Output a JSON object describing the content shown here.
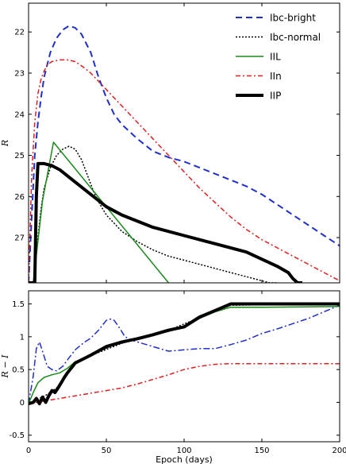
{
  "chart_data": [
    {
      "type": "line",
      "xlabel": "",
      "ylabel": "R",
      "xlim": [
        0,
        200
      ],
      "ylim": [
        28.1,
        21.3
      ],
      "y_inverted": true,
      "x_ticks": [
        0,
        50,
        100,
        150,
        200
      ],
      "y_ticks": [
        22,
        23,
        24,
        25,
        26,
        27
      ],
      "legend": "top-right",
      "series": [
        {
          "name": "Ibc-bright",
          "color": "#1f2fc8",
          "dash": "8,5",
          "width": 2,
          "x": [
            0,
            2,
            4,
            6,
            8,
            10,
            14,
            18,
            22,
            26,
            30,
            34,
            40,
            45,
            50,
            55,
            60,
            70,
            80,
            90,
            100,
            110,
            120,
            130,
            140,
            150,
            160,
            170,
            180,
            190,
            200
          ],
          "y": [
            28.1,
            26.5,
            25.0,
            24.2,
            23.6,
            23.1,
            22.5,
            22.15,
            21.95,
            21.85,
            21.9,
            22.05,
            22.5,
            23.1,
            23.6,
            24.0,
            24.25,
            24.6,
            24.9,
            25.05,
            25.15,
            25.3,
            25.45,
            25.6,
            25.75,
            25.95,
            26.2,
            26.45,
            26.7,
            26.95,
            27.2
          ]
        },
        {
          "name": "Ibc-normal",
          "color": "#000000",
          "dash": "2,2",
          "width": 1.5,
          "x": [
            0,
            3,
            6,
            8,
            10,
            14,
            18,
            22,
            26,
            30,
            34,
            38,
            42,
            46,
            50,
            55,
            60,
            70,
            80,
            90,
            100,
            110,
            120,
            130,
            140,
            150,
            155,
            160
          ],
          "y": [
            28.1,
            28.1,
            27.0,
            26.3,
            25.8,
            25.3,
            25.0,
            24.85,
            24.78,
            24.85,
            25.1,
            25.5,
            25.9,
            26.2,
            26.45,
            26.65,
            26.85,
            27.1,
            27.3,
            27.45,
            27.55,
            27.65,
            27.75,
            27.85,
            27.95,
            28.05,
            28.1,
            28.1
          ]
        },
        {
          "name": "IIL",
          "color": "#1a8a1a",
          "dash": "",
          "width": 1.5,
          "x": [
            0,
            3,
            9,
            16,
            90
          ],
          "y": [
            28.1,
            28.1,
            26.1,
            24.68,
            28.1
          ]
        },
        {
          "name": "IIn",
          "color": "#e02020",
          "dash": "6,3,2,3",
          "width": 1.5,
          "x": [
            0,
            2,
            4,
            6,
            8,
            10,
            12,
            15,
            20,
            25,
            30,
            35,
            40,
            45,
            50,
            55,
            60,
            70,
            80,
            90,
            100,
            110,
            120,
            130,
            140,
            150,
            160,
            170,
            180,
            190,
            200
          ],
          "y": [
            28.1,
            25.5,
            24.2,
            23.5,
            23.15,
            22.95,
            22.8,
            22.72,
            22.68,
            22.68,
            22.72,
            22.85,
            23.0,
            23.2,
            23.4,
            23.6,
            23.8,
            24.2,
            24.6,
            25.0,
            25.4,
            25.8,
            26.15,
            26.5,
            26.8,
            27.05,
            27.25,
            27.45,
            27.65,
            27.85,
            28.05
          ]
        },
        {
          "name": "IIP",
          "color": "#000000",
          "dash": "",
          "width": 4,
          "x": [
            0,
            4,
            5,
            6,
            10,
            15,
            20,
            30,
            40,
            50,
            60,
            80,
            100,
            120,
            140,
            160,
            167,
            170,
            173,
            176
          ],
          "y": [
            28.1,
            28.1,
            26.0,
            25.2,
            25.2,
            25.25,
            25.35,
            25.65,
            25.95,
            26.25,
            26.45,
            26.75,
            26.95,
            27.15,
            27.35,
            27.7,
            27.85,
            28.0,
            28.1,
            28.1
          ]
        }
      ]
    },
    {
      "type": "line",
      "xlabel": "Epoch (days)",
      "ylabel": "R − I",
      "xlim": [
        0,
        200
      ],
      "ylim": [
        -0.6,
        1.7
      ],
      "x_ticks": [
        0,
        50,
        100,
        150,
        200
      ],
      "y_ticks": [
        -0.5,
        0.0,
        0.5,
        1.0,
        1.5
      ],
      "series": [
        {
          "name": "Ibc-bright",
          "color": "#1f2fc8",
          "dash": "8,3,2,3",
          "width": 1.5,
          "x": [
            0,
            3,
            5,
            7,
            9,
            12,
            15,
            18,
            22,
            26,
            30,
            35,
            40,
            45,
            50,
            53,
            55,
            58,
            62,
            66,
            70,
            80,
            90,
            100,
            110,
            120,
            130,
            140,
            150,
            160,
            170,
            180,
            190,
            200
          ],
          "y": [
            -0.02,
            0.4,
            0.82,
            0.92,
            0.78,
            0.55,
            0.5,
            0.48,
            0.55,
            0.68,
            0.8,
            0.9,
            0.98,
            1.1,
            1.25,
            1.27,
            1.25,
            1.15,
            1.0,
            0.95,
            0.92,
            0.85,
            0.78,
            0.8,
            0.82,
            0.82,
            0.88,
            0.95,
            1.05,
            1.12,
            1.2,
            1.28,
            1.38,
            1.48
          ]
        },
        {
          "name": "Ibc-normal",
          "color": "#000000",
          "dash": "2,2",
          "width": 1.5,
          "x": [
            0,
            6,
            12,
            18,
            30,
            60,
            90,
            130,
            160,
            200
          ],
          "y": [
            -0.02,
            0.05,
            0.12,
            0.22,
            0.62,
            0.9,
            1.1,
            1.48,
            1.49,
            1.49
          ]
        },
        {
          "name": "IIL",
          "color": "#1a8a1a",
          "dash": "",
          "width": 1.5,
          "x": [
            0,
            3,
            6,
            10,
            15,
            20,
            25,
            30,
            40,
            55,
            70,
            90,
            100,
            110,
            120,
            130,
            150,
            200
          ],
          "y": [
            -0.02,
            0.15,
            0.3,
            0.38,
            0.42,
            0.45,
            0.52,
            0.62,
            0.72,
            0.88,
            0.98,
            1.08,
            1.15,
            1.28,
            1.38,
            1.45,
            1.45,
            1.46
          ]
        },
        {
          "name": "IIn",
          "color": "#e02020",
          "dash": "6,3,2,3",
          "width": 1.5,
          "x": [
            0,
            5,
            10,
            15,
            20,
            25,
            30,
            40,
            50,
            60,
            70,
            80,
            90,
            100,
            110,
            120,
            130,
            140,
            200
          ],
          "y": [
            -0.02,
            0.0,
            0.02,
            0.04,
            0.06,
            0.08,
            0.1,
            0.14,
            0.18,
            0.22,
            0.28,
            0.35,
            0.42,
            0.5,
            0.55,
            0.58,
            0.59,
            0.59,
            0.59
          ]
        },
        {
          "name": "IIP",
          "color": "#000000",
          "dash": "",
          "width": 4,
          "x": [
            0,
            3,
            5,
            7,
            9,
            11,
            13,
            15,
            17,
            19,
            21,
            23,
            25,
            30,
            40,
            50,
            60,
            70,
            80,
            90,
            100,
            110,
            120,
            130,
            140,
            150,
            160,
            170,
            180,
            190,
            200
          ],
          "y": [
            -0.02,
            0.0,
            0.06,
            -0.02,
            0.08,
            0.0,
            0.1,
            0.18,
            0.15,
            0.22,
            0.3,
            0.38,
            0.45,
            0.6,
            0.72,
            0.85,
            0.92,
            0.97,
            1.03,
            1.1,
            1.15,
            1.3,
            1.4,
            1.5,
            1.5,
            1.5,
            1.5,
            1.5,
            1.5,
            1.5,
            1.5
          ]
        }
      ]
    }
  ]
}
